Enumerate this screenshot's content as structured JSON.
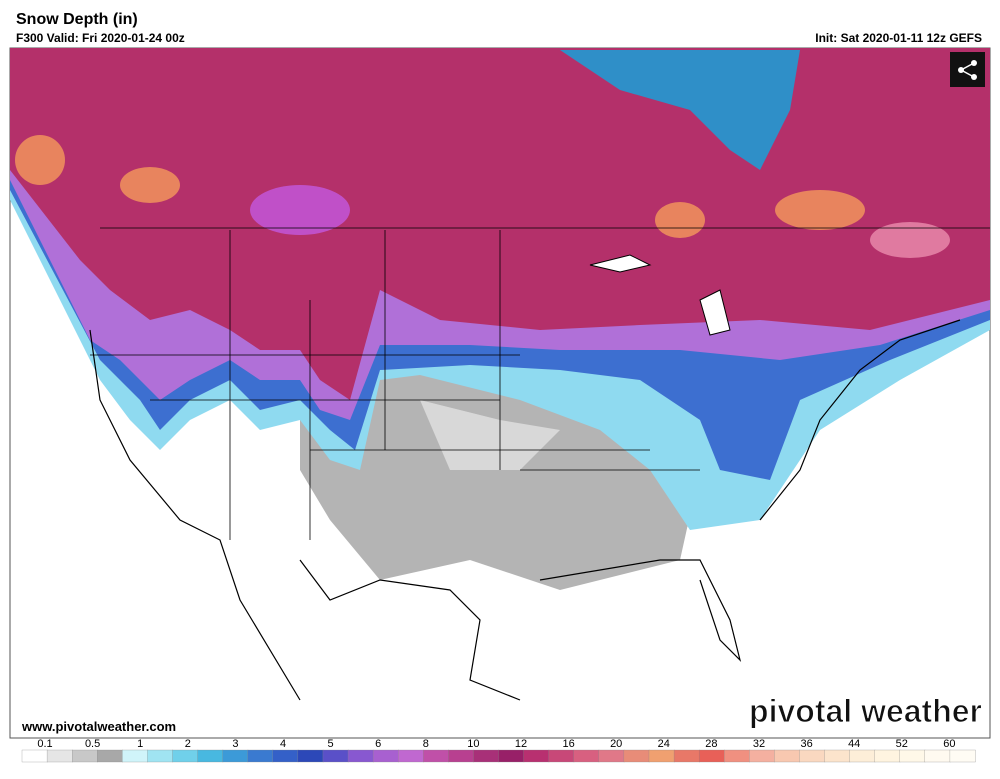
{
  "header": {
    "title": "Snow Depth (in)",
    "valid": "F300 Valid: Fri 2020-01-24 00z",
    "init": "Init: Sat 2020-01-11 12z GEFS"
  },
  "footer": {
    "website": "www.pivotalweather.com",
    "brand": "pivotal weather"
  },
  "legend": {
    "labels": [
      0.1,
      0.5,
      1,
      2,
      3,
      4,
      5,
      6,
      8,
      10,
      12,
      16,
      20,
      24,
      28,
      32,
      36,
      44,
      52,
      60
    ]
  }
}
